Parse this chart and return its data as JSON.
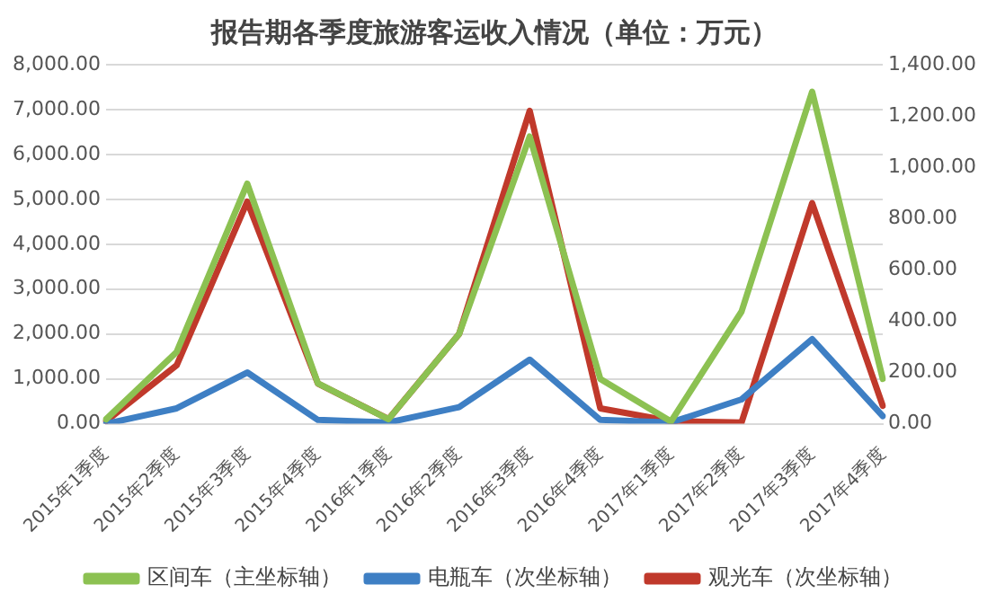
{
  "chart_data": {
    "type": "line",
    "title": "报告期各季度旅游客运收入情况（单位：万元）",
    "categories": [
      "2015年1季度",
      "2015年2季度",
      "2015年3季度",
      "2015年4季度",
      "2016年1季度",
      "2016年2季度",
      "2016年3季度",
      "2016年4季度",
      "2017年1季度",
      "2017年2季度",
      "2017年3季度",
      "2017年4季度"
    ],
    "series": [
      {
        "name": "区间车（主坐标轴）",
        "color": "#8cc152",
        "values": [
          100,
          1600,
          5350,
          900,
          100,
          2000,
          6400,
          1000,
          50,
          2500,
          7400,
          1000
        ]
      },
      {
        "name": "电瓶车（次坐标轴）",
        "color": "#3e7fc4",
        "axis": "y2",
        "values": [
          0,
          60,
          200,
          15,
          5,
          65,
          250,
          15,
          5,
          95,
          330,
          30
        ]
      },
      {
        "name": "观光车（次坐标轴）",
        "color": "#c0392b",
        "axis": "y2",
        "values": [
          10,
          228,
          866,
          157,
          18,
          350,
          1220,
          60,
          10,
          5,
          860,
          70
        ]
      }
    ],
    "ylim": [
      0,
      8000
    ],
    "yticks": [
      {
        "value": 0,
        "label": "0.00"
      },
      {
        "value": 1000,
        "label": "1,000.00"
      },
      {
        "value": 2000,
        "label": "2,000.00"
      },
      {
        "value": 3000,
        "label": "3,000.00"
      },
      {
        "value": 4000,
        "label": "4,000.00"
      },
      {
        "value": 5000,
        "label": "5,000.00"
      },
      {
        "value": 6000,
        "label": "6,000.00"
      },
      {
        "value": 7000,
        "label": "7,000.00"
      },
      {
        "value": 8000,
        "label": "8,000.00"
      }
    ],
    "y2lim": [
      0,
      1400
    ],
    "y2ticks": [
      {
        "value": 0,
        "label": "0.00"
      },
      {
        "value": 200,
        "label": "200.00"
      },
      {
        "value": 400,
        "label": "400.00"
      },
      {
        "value": 600,
        "label": "600.00"
      },
      {
        "value": 800,
        "label": "800.00"
      },
      {
        "value": 1000,
        "label": "1,000.00"
      },
      {
        "value": 1200,
        "label": "1,200.00"
      },
      {
        "value": 1400,
        "label": "1,400.00"
      }
    ],
    "grid": "y",
    "legend": "bottom",
    "marker": "none",
    "line_style": "solid"
  }
}
